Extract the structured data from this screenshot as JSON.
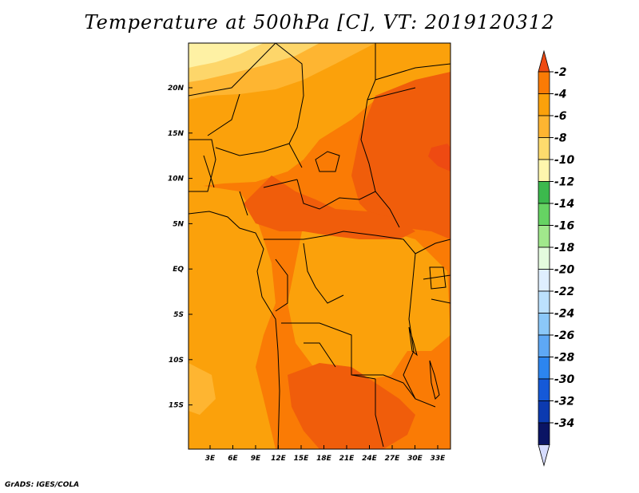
{
  "title": "Temperature at 500hPa [C], VT: 2019120312",
  "footer": "GrADS: IGES/COLA",
  "map": {
    "lon_labels": [
      "3E",
      "6E",
      "9E",
      "12E",
      "15E",
      "18E",
      "21E",
      "24E",
      "27E",
      "30E",
      "33E"
    ],
    "lat_labels": [
      "20N",
      "15N",
      "10N",
      "5N",
      "EQ",
      "5S",
      "10S",
      "15S"
    ]
  },
  "colorbar": {
    "labels": [
      "-2",
      "-4",
      "-6",
      "-8",
      "-10",
      "-12",
      "-14",
      "-16",
      "-18",
      "-20",
      "-22",
      "-24",
      "-26",
      "-28",
      "-30",
      "-32",
      "-34"
    ],
    "colors": [
      "#ee4a12",
      "#fa7b05",
      "#fba10b",
      "#feb531",
      "#fddb6d",
      "#fef6ad",
      "#3cb94d",
      "#66d363",
      "#a1e88c",
      "#e4fbde",
      "#dfefff",
      "#bce1fd",
      "#8bc8f9",
      "#5ea8f5",
      "#2c85ef",
      "#1559d8",
      "#0c3ab0",
      "#0a1464",
      "#d6dcff"
    ]
  },
  "colors": {
    "deep": "#f05d0b",
    "mid": "#fa7b05",
    "warm": "#fba10b",
    "light": "#feb531",
    "pale": "#fdd66a",
    "palest": "#fef1a4",
    "hot": "#ee4a12"
  }
}
